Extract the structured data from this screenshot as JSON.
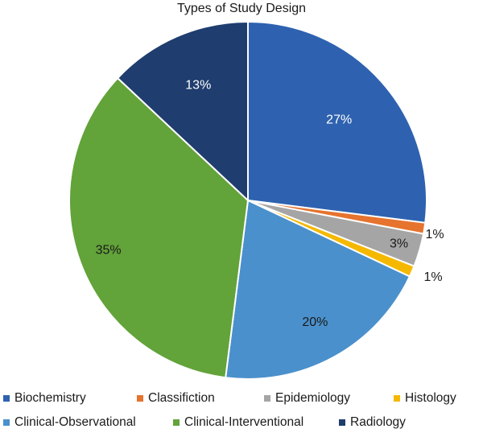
{
  "chart_data": {
    "type": "pie",
    "title": "Types of Study Design",
    "slices": [
      {
        "name": "Biochemistry",
        "value": 27,
        "label": "27%",
        "color": "#2e62b0",
        "label_color": "#ffffff"
      },
      {
        "name": "Classifiction",
        "value": 1,
        "label": "1%",
        "color": "#e6732e",
        "label_color": "#1a1a1a"
      },
      {
        "name": "Epidemiology",
        "value": 3,
        "label": "3%",
        "color": "#a5a5a5",
        "label_color": "#1a1a1a"
      },
      {
        "name": "Histology",
        "value": 1,
        "label": "1%",
        "color": "#f5b800",
        "label_color": "#1a1a1a"
      },
      {
        "name": "Clinical-Observational",
        "value": 20,
        "label": "20%",
        "color": "#4a90cc",
        "label_color": "#1a1a1a"
      },
      {
        "name": "Clinical-Interventional",
        "value": 35,
        "label": "35%",
        "color": "#62a33a",
        "label_color": "#1a1a1a"
      },
      {
        "name": "Radiology",
        "value": 13,
        "label": "13%",
        "color": "#1f3d6e",
        "label_color": "#ffffff"
      }
    ],
    "legend_position": "bottom"
  }
}
